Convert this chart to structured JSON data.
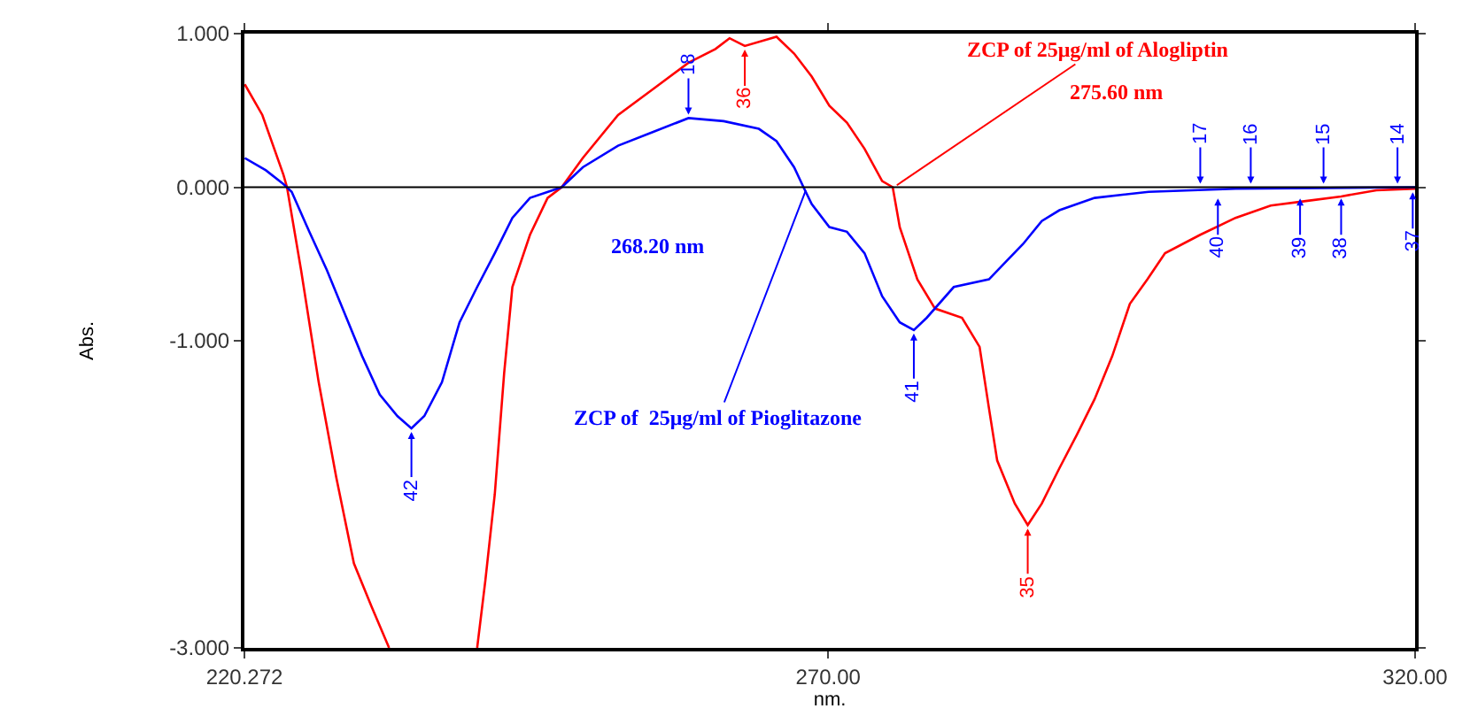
{
  "chart_data": {
    "type": "line",
    "xlabel": "nm.",
    "ylabel": "Abs.",
    "xlim": [
      220.272,
      320.0
    ],
    "xticks": [
      {
        "value": 220.272,
        "label": "220.272"
      },
      {
        "value": 270,
        "label": "270.00"
      },
      {
        "value": 320,
        "label": "320.00"
      }
    ],
    "ylim": [
      -3,
      1
    ],
    "yticks": [
      {
        "value": -3,
        "label": "-3.000"
      },
      {
        "value": -1,
        "label": "-1.000"
      },
      {
        "value": 0,
        "label": "0.000"
      },
      {
        "value": 1,
        "label": "1.000"
      }
    ],
    "marker": "none",
    "line_style": "solid",
    "ref_lines": [
      {
        "axis": "y",
        "value": 0,
        "color": "#000000"
      }
    ],
    "series": [
      {
        "color": "#ff0000",
        "x": [
          220.3,
          221.8,
          223.6,
          223.9,
          225.1,
          226.6,
          228.1,
          229.6,
          231.1,
          232.6,
          236.0,
          240.1,
          240.8,
          241.6,
          242.4,
          243.1,
          244.6,
          246.1,
          247.3,
          249.1,
          252.1,
          255.1,
          258.1,
          260.4,
          261.6,
          262.9,
          265.6,
          267.1,
          268.6,
          270.1,
          271.6,
          273.1,
          274.6,
          275.5,
          276.1,
          277.6,
          279.1,
          281.4,
          282.9,
          283.7,
          284.4,
          285.9,
          287.0,
          288.2,
          289.7,
          291.2,
          292.7,
          294.2,
          295.7,
          297.2,
          298.7,
          301.7,
          304.7,
          307.7,
          310.7,
          313.7,
          316.7,
          320.0
        ],
        "values": [
          0.67,
          0.47,
          0.08,
          0,
          -0.54,
          -1.27,
          -1.89,
          -2.45,
          -2.73,
          -3.0,
          null,
          -3.0,
          -2.56,
          -2.0,
          -1.21,
          -0.65,
          -0.31,
          -0.07,
          0,
          0.19,
          0.47,
          0.64,
          0.81,
          0.9,
          0.97,
          0.92,
          0.98,
          0.87,
          0.72,
          0.53,
          0.42,
          0.25,
          0.04,
          0,
          -0.26,
          -0.6,
          -0.79,
          -0.85,
          -1.04,
          -1.44,
          -1.78,
          -2.06,
          -2.2,
          -2.06,
          -1.83,
          -1.61,
          -1.38,
          -1.1,
          -0.76,
          -0.6,
          -0.43,
          -0.31,
          -0.2,
          -0.12,
          -0.09,
          -0.06,
          -0.02,
          -0.01
        ]
      },
      {
        "color": "#0000ff",
        "x": [
          220.3,
          222.1,
          223.6,
          224.3,
          225.8,
          227.3,
          228.8,
          230.3,
          231.8,
          233.3,
          234.5,
          235.6,
          237.1,
          238.6,
          240.1,
          241.6,
          243.1,
          244.6,
          247.3,
          249.1,
          252.1,
          255.1,
          258.1,
          261.1,
          264.1,
          265.6,
          267.1,
          267.9,
          268.6,
          270.1,
          271.6,
          273.1,
          274.6,
          276.1,
          277.3,
          278.4,
          280.7,
          283.7,
          285.2,
          286.6,
          288.2,
          289.7,
          292.7,
          297.3,
          304.7,
          320.0
        ],
        "values": [
          0.19,
          0.11,
          0.02,
          -0.03,
          -0.29,
          -0.54,
          -0.82,
          -1.1,
          -1.35,
          -1.49,
          -1.57,
          -1.49,
          -1.27,
          -0.88,
          -0.65,
          -0.43,
          -0.2,
          -0.07,
          0,
          0.13,
          0.27,
          0.36,
          0.45,
          0.43,
          0.38,
          0.3,
          0.13,
          0,
          -0.11,
          -0.26,
          -0.29,
          -0.43,
          -0.71,
          -0.88,
          -0.93,
          -0.85,
          -0.65,
          -0.6,
          -0.48,
          -0.37,
          -0.22,
          -0.15,
          -0.07,
          -0.03,
          -0.01,
          0
        ]
      }
    ],
    "annotations": [
      {
        "text": "18",
        "x": 258.1,
        "y": 0.45
      },
      {
        "text": "36",
        "x": 262.9,
        "y": 0.92
      },
      {
        "text": "35",
        "x": 287.0,
        "y": -2.2
      },
      {
        "text": "41",
        "x": 277.3,
        "y": -0.93
      },
      {
        "text": "42",
        "x": 234.5,
        "y": -1.57
      },
      {
        "text": "17",
        "x": 301.7,
        "y": 0
      },
      {
        "text": "16",
        "x": 306.0,
        "y": 0
      },
      {
        "text": "15",
        "x": 312.2,
        "y": 0
      },
      {
        "text": "14",
        "x": 318.5,
        "y": 0
      },
      {
        "text": "40",
        "x": 303.2,
        "y": -0.05
      },
      {
        "text": "39",
        "x": 310.2,
        "y": -0.05
      },
      {
        "text": "38",
        "x": 313.7,
        "y": -0.05
      },
      {
        "text": "37",
        "x": 319.8,
        "y": -0.01
      },
      {
        "text": "ZCP of 25μg/ml of Alogliptin",
        "x": 275.6,
        "y": 0
      },
      {
        "text": "275.60 nm",
        "x": 275.6,
        "y": 0
      },
      "268.20 nm",
      {
        "text": "ZCP of  25μg/ml of Pioglitazone",
        "x": 268.2,
        "y": 0
      }
    ]
  }
}
